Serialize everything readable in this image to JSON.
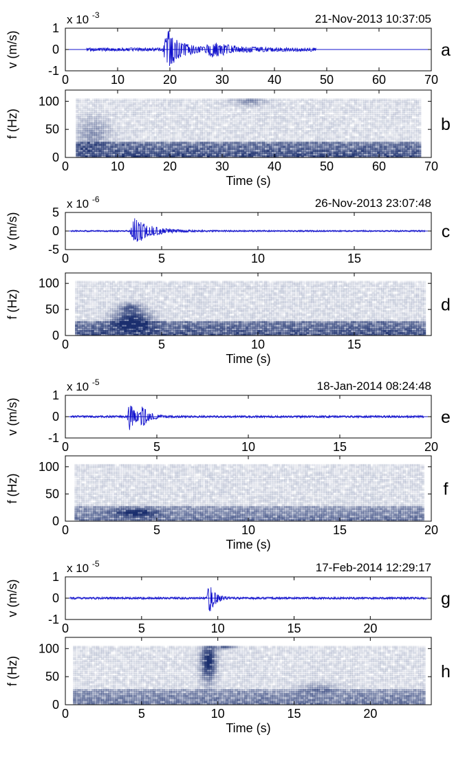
{
  "colors": {
    "waveform": "#1010cc",
    "spectrogram": "#1b2f6e",
    "axis": "#000000"
  },
  "chart_data": [
    {
      "id": "a",
      "type": "line",
      "panel_label": "a",
      "timestamp": "21-Nov-2013 10:37:05",
      "ylabel": "v (m/s)",
      "scale_base": "x 10",
      "scale_exp": "-3",
      "xlim": [
        0,
        70
      ],
      "ylim": [
        -1,
        1
      ],
      "xticks": [
        0,
        10,
        20,
        30,
        40,
        50,
        60,
        70
      ],
      "yticks": [
        -1,
        0,
        1
      ],
      "signal": {
        "start": 4,
        "end": 48,
        "noise": 0.08,
        "bursts": [
          {
            "t": 19.5,
            "amp": 0.95,
            "w": 2.5
          },
          {
            "t": 28,
            "amp": 0.3,
            "w": 4
          }
        ]
      }
    },
    {
      "id": "b",
      "type": "heatmap",
      "panel_label": "b",
      "xlabel": "Time (s)",
      "ylabel": "f (Hz)",
      "xlim": [
        0,
        70
      ],
      "ylim": [
        0,
        120
      ],
      "xticks": [
        0,
        10,
        20,
        30,
        40,
        50,
        60,
        70
      ],
      "yticks": [
        0,
        50,
        100
      ],
      "data_extent": [
        2,
        68
      ],
      "fmax": 105,
      "blobs": [
        {
          "t": 35,
          "f": 100,
          "dt": 3,
          "df": 8,
          "a": 0.35
        },
        {
          "t": 5,
          "f": 40,
          "dt": 3,
          "df": 25,
          "a": 0.3
        }
      ],
      "band": {
        "fhi": 28,
        "a": 0.85
      }
    },
    {
      "id": "c",
      "type": "line",
      "panel_label": "c",
      "timestamp": "26-Nov-2013 23:07:48",
      "ylabel": "v (m/s)",
      "scale_base": "x 10",
      "scale_exp": "-6",
      "xlim": [
        0,
        19
      ],
      "ylim": [
        -5,
        5
      ],
      "xticks": [
        0,
        5,
        10,
        15
      ],
      "yticks": [
        -5,
        0,
        5
      ],
      "signal": {
        "start": 0.3,
        "end": 18.7,
        "noise": 0.04,
        "bursts": [
          {
            "t": 3.6,
            "amp": 0.75,
            "w": 0.8
          }
        ]
      }
    },
    {
      "id": "d",
      "type": "heatmap",
      "panel_label": "d",
      "xlabel": "Time (s)",
      "ylabel": "f (Hz)",
      "xlim": [
        0,
        19
      ],
      "ylim": [
        0,
        120
      ],
      "xticks": [
        0,
        5,
        10,
        15
      ],
      "yticks": [
        0,
        50,
        100
      ],
      "data_extent": [
        0.5,
        18.7
      ],
      "fmax": 105,
      "blobs": [
        {
          "t": 3.4,
          "f": 28,
          "dt": 0.9,
          "df": 18,
          "a": 0.9
        },
        {
          "t": 3.3,
          "f": 52,
          "dt": 0.5,
          "df": 8,
          "a": 0.5
        }
      ],
      "band": {
        "fhi": 28,
        "a": 0.8
      }
    },
    {
      "id": "e",
      "type": "line",
      "panel_label": "e",
      "timestamp": "18-Jan-2014 08:24:48",
      "ylabel": "v (m/s)",
      "scale_base": "x 10",
      "scale_exp": "-5",
      "xlim": [
        0,
        20
      ],
      "ylim": [
        -1,
        1
      ],
      "xticks": [
        0,
        5,
        10,
        15,
        20
      ],
      "yticks": [
        -1,
        0,
        1
      ],
      "signal": {
        "start": 0.3,
        "end": 19.6,
        "noise": 0.05,
        "bursts": [
          {
            "t": 3.5,
            "amp": 0.65,
            "w": 0.35
          },
          {
            "t": 4.2,
            "amp": 0.45,
            "w": 0.35
          }
        ]
      }
    },
    {
      "id": "f",
      "type": "heatmap",
      "panel_label": "f",
      "xlabel": "Time (s)",
      "ylabel": "f (Hz)",
      "xlim": [
        0,
        20
      ],
      "ylim": [
        0,
        120
      ],
      "xticks": [
        0,
        5,
        10,
        15,
        20
      ],
      "yticks": [
        0,
        50,
        100
      ],
      "data_extent": [
        0.5,
        19.6
      ],
      "fmax": 105,
      "blobs": [
        {
          "t": 3.8,
          "f": 14,
          "dt": 1.1,
          "df": 7,
          "a": 0.7
        }
      ],
      "band": {
        "fhi": 26,
        "a": 0.55
      }
    },
    {
      "id": "g",
      "type": "line",
      "panel_label": "g",
      "timestamp": "17-Feb-2014 12:29:17",
      "ylabel": "v (m/s)",
      "scale_base": "x 10",
      "scale_exp": "-5",
      "xlim": [
        0,
        24
      ],
      "ylim": [
        -1,
        1
      ],
      "xticks": [
        0,
        5,
        10,
        15,
        20
      ],
      "yticks": [
        -1,
        0,
        1
      ],
      "signal": {
        "start": 0.3,
        "end": 23.7,
        "noise": 0.05,
        "bursts": [
          {
            "t": 9.4,
            "amp": 0.85,
            "w": 0.35
          }
        ]
      }
    },
    {
      "id": "h",
      "type": "heatmap",
      "panel_label": "h",
      "xlabel": "Time (s)",
      "ylabel": "f (Hz)",
      "xlim": [
        0,
        24
      ],
      "ylim": [
        0,
        120
      ],
      "xticks": [
        0,
        5,
        10,
        15,
        20
      ],
      "yticks": [
        0,
        50,
        100
      ],
      "data_extent": [
        0.5,
        23.6
      ],
      "fmax": 105,
      "blobs": [
        {
          "t": 9.3,
          "f": 75,
          "dt": 0.45,
          "df": 32,
          "a": 0.95
        },
        {
          "t": 10.3,
          "f": 104,
          "dt": 0.7,
          "df": 5,
          "a": 0.75
        },
        {
          "t": 16.5,
          "f": 28,
          "dt": 1.2,
          "df": 8,
          "a": 0.3
        }
      ],
      "band": {
        "fhi": 26,
        "a": 0.55
      }
    }
  ]
}
